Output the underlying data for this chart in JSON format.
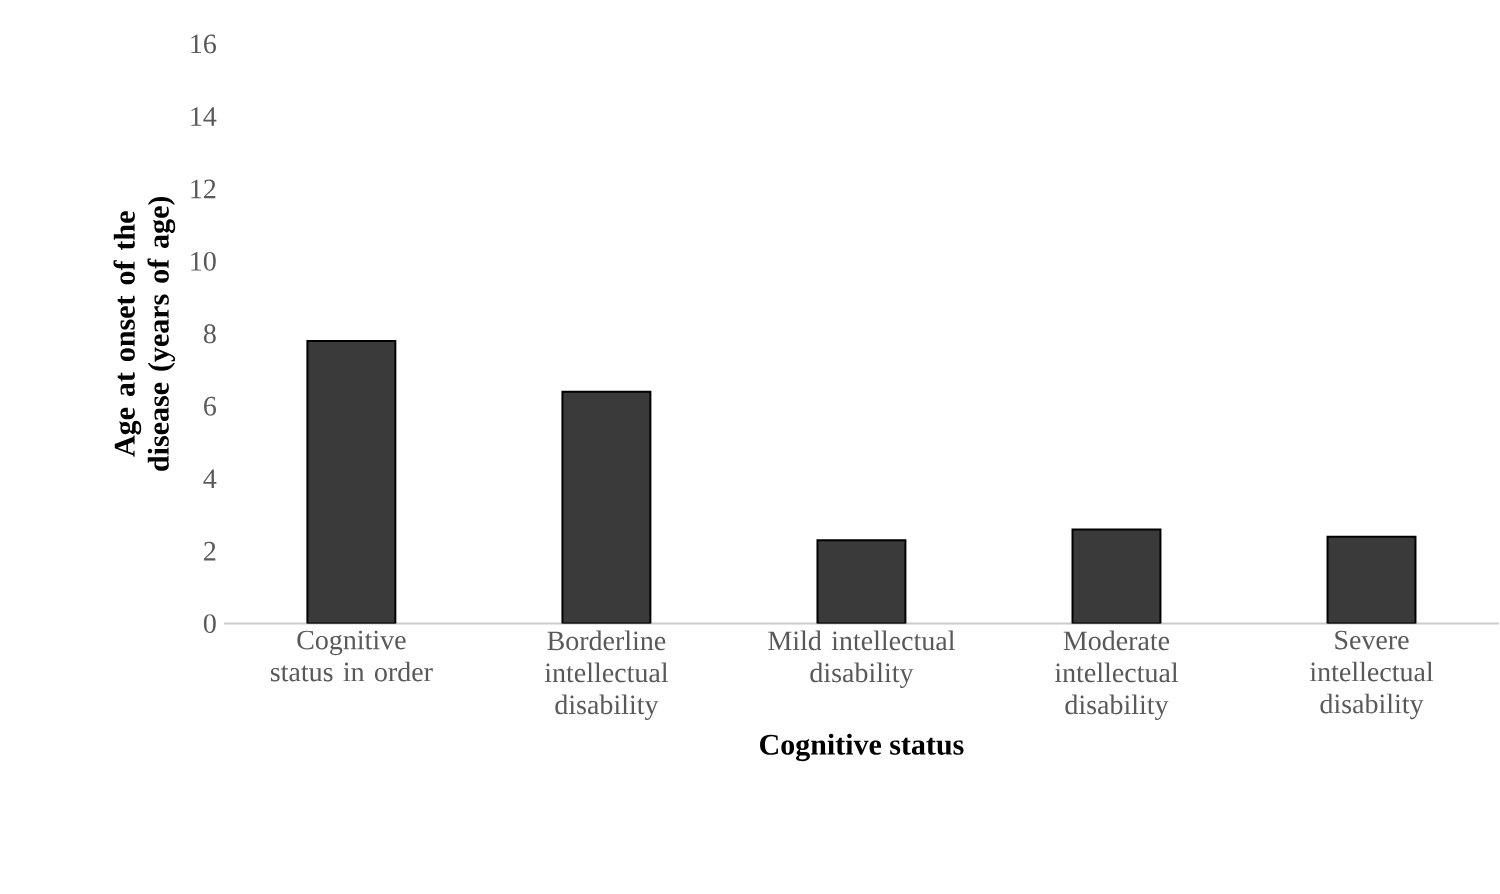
{
  "chart_data": {
    "type": "bar",
    "xlabel": "Cognitive status",
    "ylabel": "Age at onset of the disease (years of age)",
    "categories": [
      "Cognitive status in order",
      "Borderline intellectual disability",
      "Mild intellectual disability",
      "Moderate intellectual disability",
      "Severe intellectual disability"
    ],
    "values": [
      7.8,
      6.4,
      2.3,
      2.6,
      2.4
    ],
    "color": "#3a3a3a",
    "ylim": [
      0,
      16
    ],
    "yticks": [
      0,
      2,
      4,
      6,
      8,
      10,
      12,
      14,
      16
    ],
    "grid": false
  }
}
